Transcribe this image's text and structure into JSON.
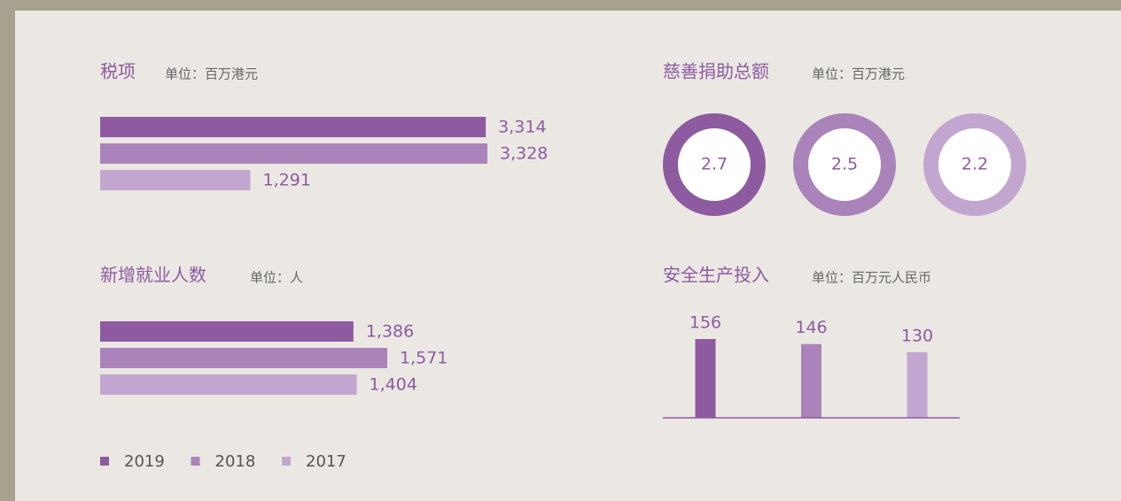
{
  "chart_data": [
    {
      "type": "hbar",
      "title": "税项",
      "subtitle": "单位：百万港元",
      "values": [
        3314,
        3328,
        1291
      ],
      "value_labels": [
        "3,314",
        "3,328",
        "1,291"
      ]
    },
    {
      "type": "donut",
      "title": "慈善捐助总额",
      "subtitle": "单位：百万港元",
      "values": [
        2.7,
        2.5,
        2.2
      ]
    },
    {
      "type": "hbar",
      "title": "新增就业人数",
      "subtitle": "单位：人",
      "values": [
        1386,
        1571,
        1404
      ],
      "value_labels": [
        "1,386",
        "1,571",
        "1,404"
      ]
    },
    {
      "type": "column",
      "title": "安全生产投入",
      "subtitle": "单位：百万元人民币",
      "values": [
        156,
        146,
        130
      ]
    }
  ],
  "legend": [
    {
      "name": "2019",
      "color": "#8e5ba0"
    },
    {
      "name": "2018",
      "color": "#a983b9"
    },
    {
      "name": "2017",
      "color": "#c3a6d0"
    }
  ]
}
